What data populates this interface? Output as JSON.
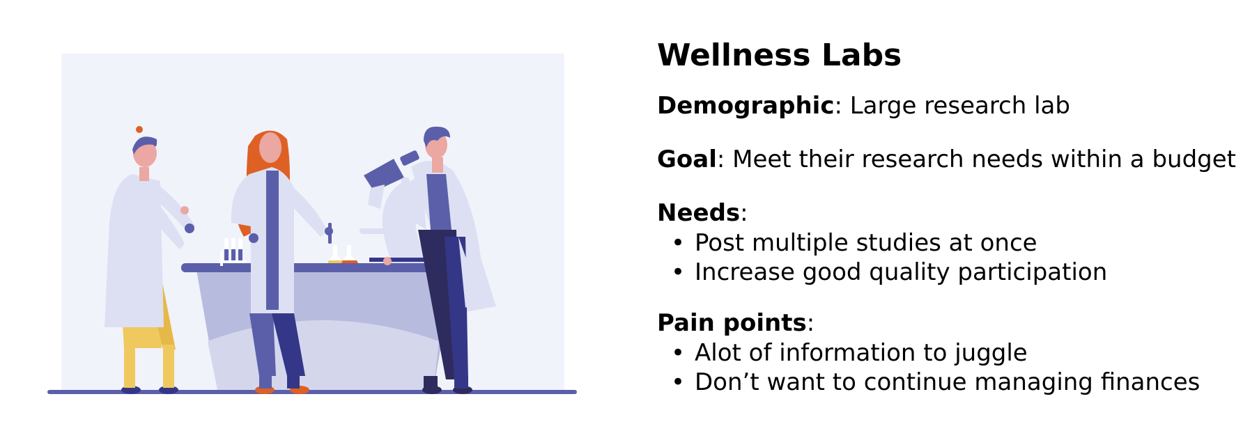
{
  "persona": {
    "title": "Wellness Labs",
    "demographic": {
      "label": "Demographic",
      "value": "Large research lab"
    },
    "goal": {
      "label": "Goal",
      "value": "Meet their research needs within a budget"
    },
    "needs": {
      "label": "Needs",
      "items": [
        "Post multiple studies at once",
        "Increase good quality participation"
      ]
    },
    "pain_points": {
      "label": "Pain points",
      "items": [
        "Alot of information to juggle",
        "Don’t want to continue managing finances"
      ]
    }
  },
  "illustration": {
    "icon": "lab-scientists-illustration",
    "colors": {
      "background": "#F1F3FB",
      "floor": "#5B5FAA",
      "bench": "#B7BCDF",
      "coat": "#DDE0F2",
      "hair_orange": "#DE6024",
      "navy": "#343787",
      "yellow": "#EFC95E",
      "skin": "#EBA7A1"
    }
  }
}
